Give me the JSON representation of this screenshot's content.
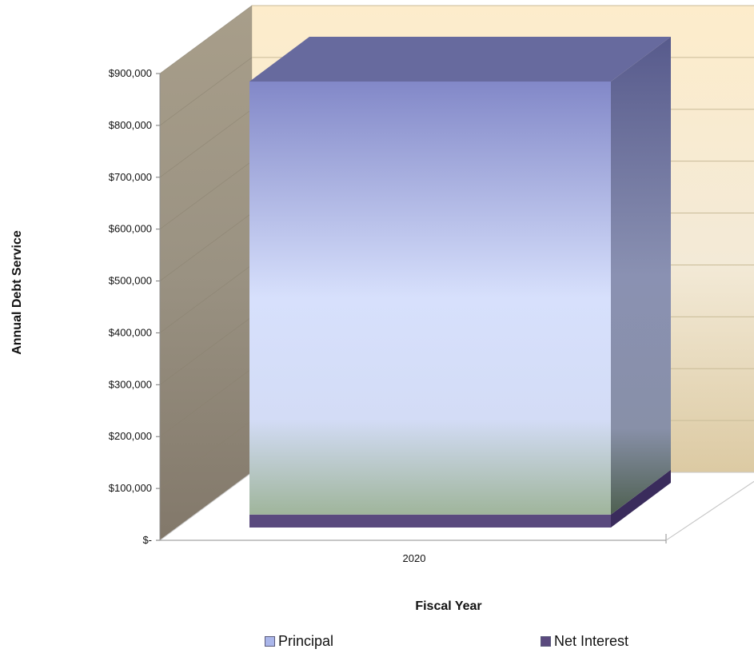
{
  "chart_data": {
    "type": "bar",
    "title": "",
    "xlabel": "Fiscal Year",
    "ylabel": "Annual Debt Service",
    "categories": [
      "2020"
    ],
    "series": [
      {
        "name": "Principal",
        "values": [
          835000
        ]
      },
      {
        "name": "Net Interest",
        "values": [
          25000
        ]
      }
    ],
    "ylim": [
      0,
      900000
    ],
    "y_ticks": [
      0,
      100000,
      200000,
      300000,
      400000,
      500000,
      600000,
      700000,
      800000,
      900000
    ],
    "y_tick_labels": [
      "$-",
      "$100,000",
      "$200,000",
      "$300,000",
      "$400,000",
      "$500,000",
      "$600,000",
      "$700,000",
      "$800,000",
      "$900,000"
    ],
    "stacked": true,
    "three_d": true,
    "grid": true,
    "legend_position": "bottom",
    "colors": {
      "principal": "#aab6ea",
      "net_interest": "#5a4a7e",
      "back_wall": "#f3e4c4",
      "side_wall": "#9c937f"
    }
  }
}
